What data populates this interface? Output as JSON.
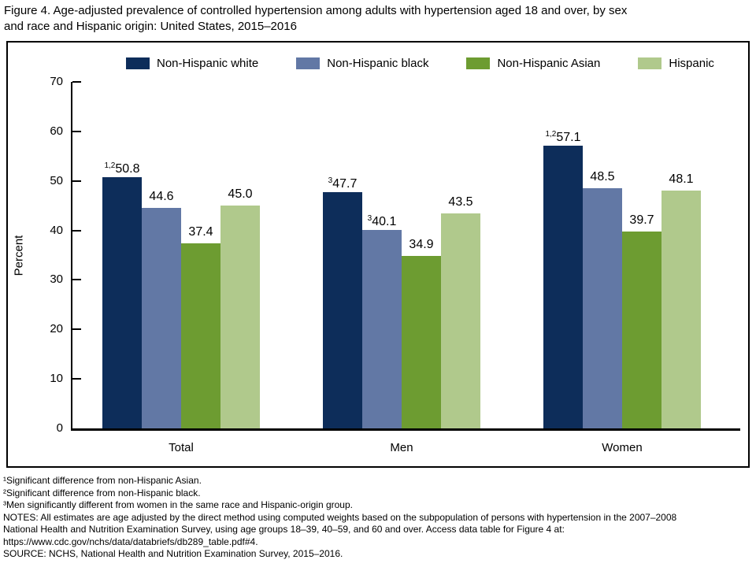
{
  "title_lines": [
    "Figure 4. Age-adjusted prevalence of controlled hypertension among adults with hypertension aged 18 and over, by sex",
    "and race and Hispanic origin: United States, 2015–2016"
  ],
  "chart_data": {
    "type": "bar",
    "title": "Figure 4. Age-adjusted prevalence of controlled hypertension among adults with hypertension aged 18 and over, by sex and race and Hispanic origin: United States, 2015–2016",
    "xlabel": "",
    "ylabel": "Percent",
    "ylim": [
      0,
      70
    ],
    "ytick_step": 10,
    "grid": false,
    "legend_position": "top",
    "categories": [
      "Total",
      "Men",
      "Women"
    ],
    "series": [
      {
        "name": "Non-Hispanic white",
        "color": "#0d2d5a",
        "values": [
          "50.8",
          "47.7",
          "57.1"
        ],
        "sups": [
          "1,2",
          "3",
          "1,2"
        ]
      },
      {
        "name": "Non-Hispanic black",
        "color": "#6278a5",
        "values": [
          "44.6",
          "40.1",
          "48.5"
        ],
        "sups": [
          "",
          "3",
          ""
        ]
      },
      {
        "name": "Non-Hispanic Asian",
        "color": "#6d9c31",
        "values": [
          "37.4",
          "34.9",
          "39.7"
        ],
        "sups": [
          "",
          "",
          ""
        ]
      },
      {
        "name": "Hispanic",
        "color": "#b0c98c",
        "values": [
          "45.0",
          "43.5",
          "48.1"
        ],
        "sups": [
          "",
          "",
          ""
        ]
      }
    ]
  },
  "footnotes": [
    "¹Significant difference from non-Hispanic Asian.",
    "²Significant difference from non-Hispanic black.",
    "³Men significantly different from women in the same race and Hispanic-origin group.",
    "NOTES: All estimates are age adjusted by the direct method using computed weights based on the subpopulation of persons with hypertension in the 2007–2008",
    "National Health and Nutrition Examination Survey, using age groups 18–39, 40–59, and 60 and over. Access data table for Figure 4 at:",
    "https://www.cdc.gov/nchs/data/databriefs/db289_table.pdf#4.",
    "SOURCE: NCHS, National Health and Nutrition Examination Survey, 2015–2016."
  ]
}
